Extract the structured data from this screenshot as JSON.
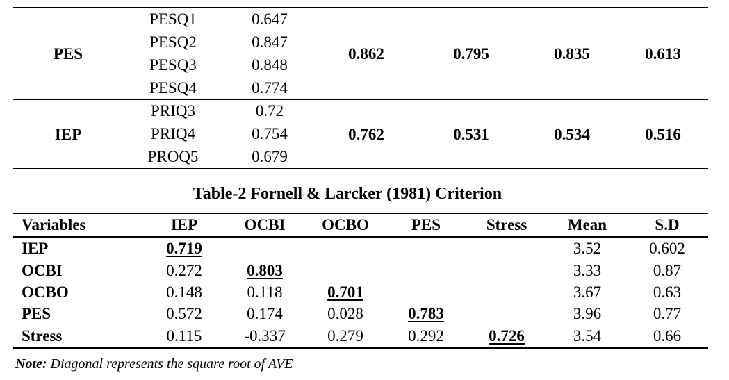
{
  "table1": {
    "groups": [
      {
        "construct": "PES",
        "items": [
          {
            "code": "PESQ1",
            "loading": "0.647"
          },
          {
            "code": "PESQ2",
            "loading": "0.847"
          },
          {
            "code": "PESQ3",
            "loading": "0.848"
          },
          {
            "code": "PESQ4",
            "loading": "0.774"
          }
        ],
        "metrics": [
          "0.862",
          "0.795",
          "0.835",
          "0.613"
        ]
      },
      {
        "construct": "IEP",
        "items": [
          {
            "code": "PRIQ3",
            "loading": "0.72"
          },
          {
            "code": "PRIQ4",
            "loading": "0.754"
          },
          {
            "code": "PROQ5",
            "loading": "0.679"
          }
        ],
        "metrics": [
          "0.762",
          "0.531",
          "0.534",
          "0.516"
        ]
      }
    ]
  },
  "table2": {
    "title": "Table-2 Fornell & Larcker (1981) Criterion",
    "headers": [
      "Variables",
      "IEP",
      "OCBI",
      "OCBO",
      "PES",
      "Stress",
      "Mean",
      "S.D"
    ],
    "rows": [
      {
        "label": "IEP",
        "values": [
          "0.719",
          "",
          "",
          "",
          ""
        ],
        "mean": "3.52",
        "sd": "0.602"
      },
      {
        "label": "OCBI",
        "values": [
          "0.272",
          "0.803",
          "",
          "",
          ""
        ],
        "mean": "3.33",
        "sd": "0.87"
      },
      {
        "label": "OCBO",
        "values": [
          "0.148",
          "0.118",
          "0.701",
          "",
          ""
        ],
        "mean": "3.67",
        "sd": "0.63"
      },
      {
        "label": "PES",
        "values": [
          "0.572",
          "0.174",
          "0.028",
          "0.783",
          ""
        ],
        "mean": "3.96",
        "sd": "0.77"
      },
      {
        "label": "Stress",
        "values": [
          "0.115",
          "-0.337",
          "0.279",
          "0.292",
          "0.726"
        ],
        "mean": "3.54",
        "sd": "0.66"
      }
    ]
  },
  "note": {
    "label": "Note:",
    "text": " Diagonal represents the square root of AVE"
  }
}
